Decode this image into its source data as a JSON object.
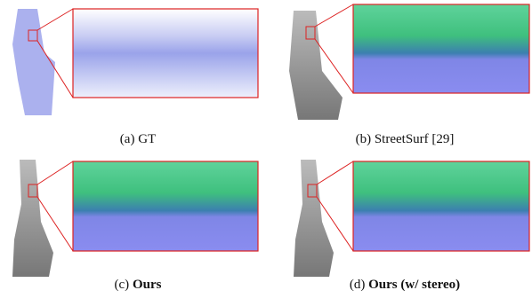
{
  "panels": [
    {
      "label": "(a)",
      "caption": "GT"
    },
    {
      "label": "(b)",
      "caption": "StreetSurf [29]"
    },
    {
      "label": "(c)",
      "caption": "Ours"
    },
    {
      "label": "(d)",
      "caption": "Ours (w/ stereo)"
    }
  ]
}
